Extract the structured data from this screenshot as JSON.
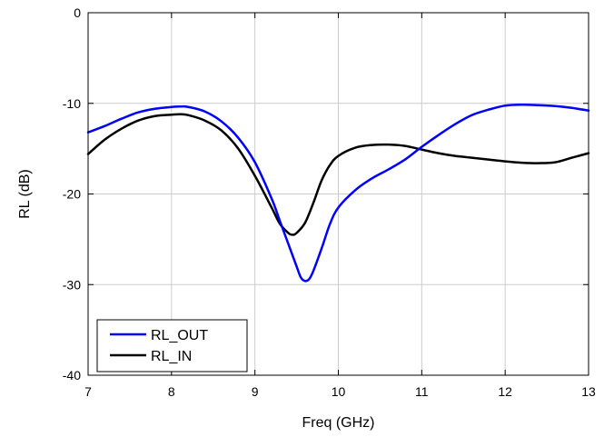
{
  "chart_data": {
    "type": "line",
    "xlabel": "Freq (GHz)",
    "ylabel": "RL (dB)",
    "xlim": [
      7,
      13
    ],
    "ylim": [
      -40,
      0
    ],
    "xticks": [
      7,
      8,
      9,
      10,
      11,
      12,
      13
    ],
    "yticks": [
      0,
      -10,
      -20,
      -30,
      -40
    ],
    "grid": true,
    "legend_position": "bottom-left",
    "series": [
      {
        "name": "RL_OUT",
        "color": "#0000ff",
        "x": [
          7.0,
          7.2,
          7.4,
          7.6,
          7.8,
          8.0,
          8.1,
          8.2,
          8.4,
          8.6,
          8.8,
          9.0,
          9.2,
          9.3,
          9.4,
          9.5,
          9.55,
          9.6,
          9.65,
          9.7,
          9.8,
          9.9,
          10.0,
          10.2,
          10.4,
          10.6,
          10.8,
          11.0,
          11.2,
          11.4,
          11.6,
          11.8,
          12.0,
          12.2,
          12.4,
          12.6,
          12.8,
          13.0
        ],
        "y": [
          -13.2,
          -12.5,
          -11.7,
          -11.0,
          -10.6,
          -10.4,
          -10.35,
          -10.4,
          -10.9,
          -12.0,
          -13.8,
          -16.5,
          -20.5,
          -23.0,
          -25.5,
          -28.0,
          -29.2,
          -29.6,
          -29.4,
          -28.5,
          -26.0,
          -23.3,
          -21.5,
          -19.6,
          -18.3,
          -17.3,
          -16.2,
          -14.8,
          -13.5,
          -12.3,
          -11.3,
          -10.7,
          -10.25,
          -10.15,
          -10.2,
          -10.3,
          -10.5,
          -10.8
        ]
      },
      {
        "name": "RL_IN",
        "color": "#000000",
        "x": [
          7.0,
          7.2,
          7.4,
          7.6,
          7.8,
          8.0,
          8.1,
          8.2,
          8.4,
          8.6,
          8.8,
          9.0,
          9.2,
          9.3,
          9.4,
          9.45,
          9.5,
          9.6,
          9.7,
          9.8,
          9.9,
          10.0,
          10.2,
          10.4,
          10.6,
          10.8,
          11.0,
          11.2,
          11.4,
          11.6,
          11.8,
          12.0,
          12.2,
          12.4,
          12.6,
          12.8,
          13.0
        ],
        "y": [
          -15.6,
          -14.0,
          -12.8,
          -11.9,
          -11.4,
          -11.25,
          -11.2,
          -11.3,
          -11.9,
          -13.0,
          -15.0,
          -18.0,
          -21.5,
          -23.3,
          -24.3,
          -24.5,
          -24.3,
          -23.2,
          -21.0,
          -18.5,
          -16.8,
          -15.8,
          -14.9,
          -14.6,
          -14.55,
          -14.7,
          -15.1,
          -15.5,
          -15.8,
          -16.0,
          -16.2,
          -16.4,
          -16.55,
          -16.6,
          -16.5,
          -16.0,
          -15.5
        ]
      }
    ]
  }
}
